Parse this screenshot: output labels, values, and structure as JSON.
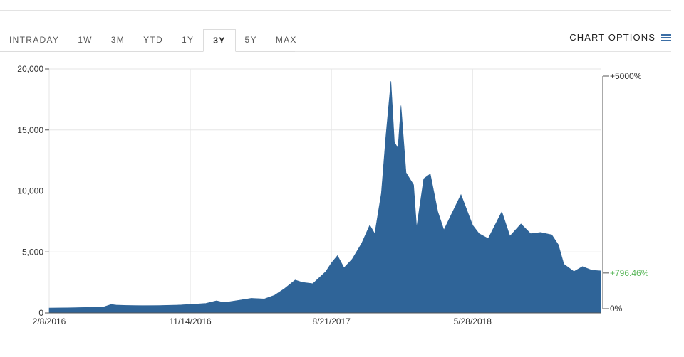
{
  "tabs": [
    {
      "label": "INTRADAY",
      "active": false
    },
    {
      "label": "1W",
      "active": false
    },
    {
      "label": "3M",
      "active": false
    },
    {
      "label": "YTD",
      "active": false
    },
    {
      "label": "1Y",
      "active": false
    },
    {
      "label": "3Y",
      "active": true
    },
    {
      "label": "5Y",
      "active": false
    },
    {
      "label": "MAX",
      "active": false
    }
  ],
  "options_label": "CHART OPTIONS",
  "colors": {
    "area": "#2f6498",
    "positive": "#5cb85c",
    "grid": "#e6e6e6"
  },
  "chart_data": {
    "type": "area",
    "title": "",
    "xlabel": "",
    "ylabel": "",
    "ylim": [
      0,
      20000
    ],
    "y_ticks": [
      "20,000",
      "15,000",
      "10,000",
      "5,000",
      "0"
    ],
    "x_ticks": [
      "2/8/2016",
      "11/14/2016",
      "8/21/2017",
      "5/28/2018"
    ],
    "right_axis": {
      "labels": [
        "+5000%",
        "0%"
      ],
      "current_label": "+796.46%"
    },
    "grid": true,
    "legend": "none",
    "series": [
      {
        "x": [
          "2016-02-08",
          "2016-03-15",
          "2016-04-20",
          "2016-05-25",
          "2016-06-10",
          "2016-06-20",
          "2016-07-10",
          "2016-08-10",
          "2016-09-15",
          "2016-10-20",
          "2016-11-14",
          "2016-12-15",
          "2017-01-05",
          "2017-01-20",
          "2017-02-20",
          "2017-03-15",
          "2017-04-10",
          "2017-04-30",
          "2017-05-20",
          "2017-06-10",
          "2017-06-25",
          "2017-07-15",
          "2017-08-10",
          "2017-08-21",
          "2017-09-02",
          "2017-09-15",
          "2017-10-01",
          "2017-10-20",
          "2017-11-05",
          "2017-11-15",
          "2017-11-28",
          "2017-12-07",
          "2017-12-17",
          "2017-12-24",
          "2017-12-31",
          "2018-01-06",
          "2018-01-16",
          "2018-01-31",
          "2018-02-06",
          "2018-02-20",
          "2018-03-05",
          "2018-03-20",
          "2018-04-01",
          "2018-04-15",
          "2018-05-05",
          "2018-05-28",
          "2018-06-10",
          "2018-06-28",
          "2018-07-25",
          "2018-08-10",
          "2018-09-01",
          "2018-09-20",
          "2018-10-10",
          "2018-11-01",
          "2018-11-14",
          "2018-11-25",
          "2018-12-15",
          "2019-01-01",
          "2019-01-20",
          "2019-02-06"
        ],
        "values": [
          400,
          420,
          450,
          480,
          700,
          650,
          620,
          600,
          610,
          650,
          700,
          780,
          1000,
          850,
          1050,
          1200,
          1150,
          1450,
          2000,
          2700,
          2500,
          2400,
          3400,
          4100,
          4700,
          3700,
          4400,
          5700,
          7200,
          6500,
          9800,
          14500,
          19000,
          14000,
          13500,
          17000,
          11500,
          10500,
          7000,
          11000,
          11400,
          8300,
          6800,
          8000,
          9700,
          7200,
          6500,
          6100,
          8300,
          6300,
          7300,
          6500,
          6600,
          6400,
          5600,
          4000,
          3400,
          3800,
          3500,
          3450
        ]
      }
    ]
  }
}
